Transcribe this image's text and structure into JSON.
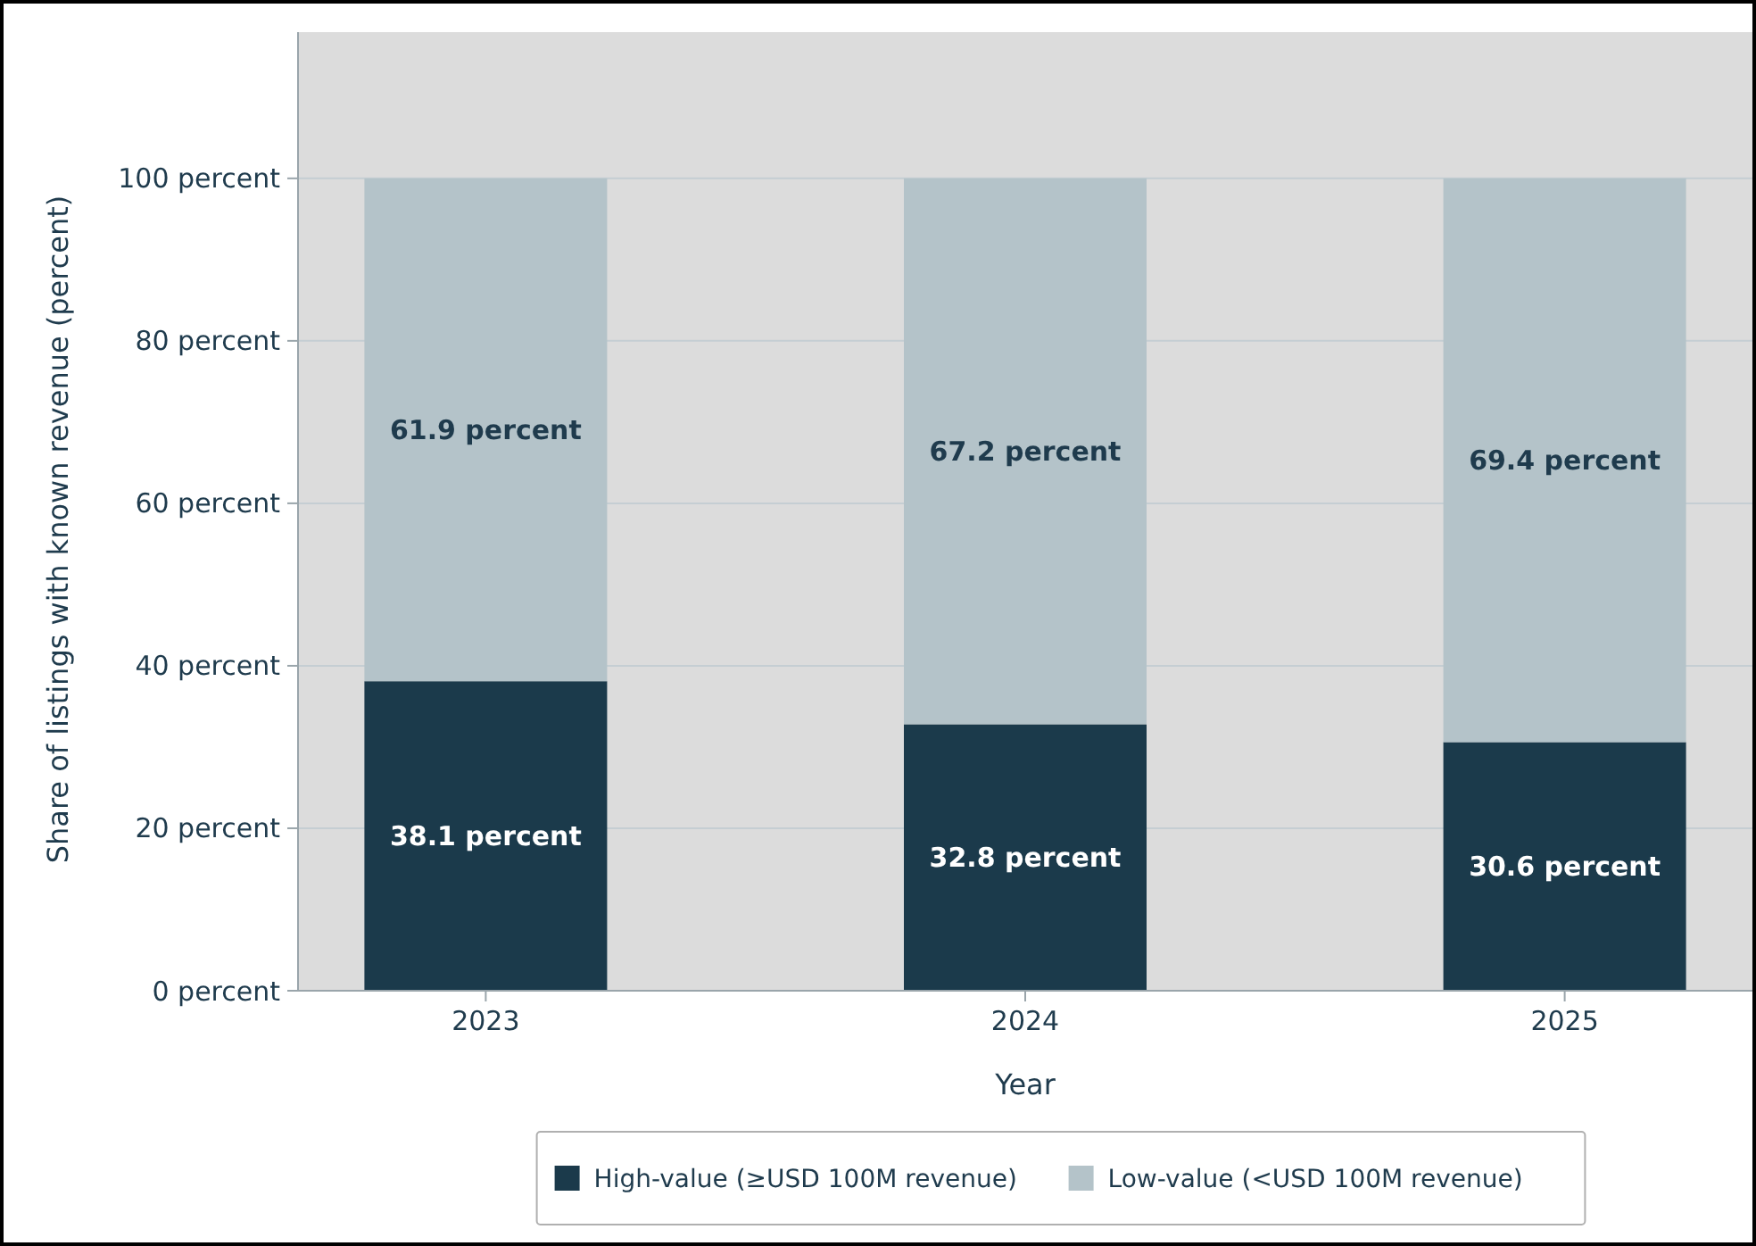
{
  "chart_data": {
    "type": "bar",
    "stacked": true,
    "xlabel": "Year",
    "ylabel": "Share of listings with known revenue (percent)",
    "categories": [
      "2023",
      "2024",
      "2025"
    ],
    "series": [
      {
        "name": "High-value (≥USD 100M revenue)",
        "color": "#1b3a4b",
        "values": [
          38.1,
          32.8,
          30.6
        ],
        "value_labels": [
          "38.1 percent",
          "32.8 percent",
          "30.6 percent"
        ]
      },
      {
        "name": "Low-value (<USD 100M revenue)",
        "color": "#b4c3c9",
        "values": [
          61.9,
          67.2,
          69.4
        ],
        "value_labels": [
          "61.9 percent",
          "67.2 percent",
          "69.4 percent"
        ]
      }
    ],
    "ylim": [
      0,
      118
    ],
    "yticks": [
      {
        "value": 0,
        "label": "0 percent"
      },
      {
        "value": 20,
        "label": "20 percent"
      },
      {
        "value": 40,
        "label": "40 percent"
      },
      {
        "value": 60,
        "label": "60 percent"
      },
      {
        "value": 80,
        "label": "80 percent"
      },
      {
        "value": 100,
        "label": "100 percent"
      }
    ],
    "grid": "y",
    "legend": "bottom"
  }
}
